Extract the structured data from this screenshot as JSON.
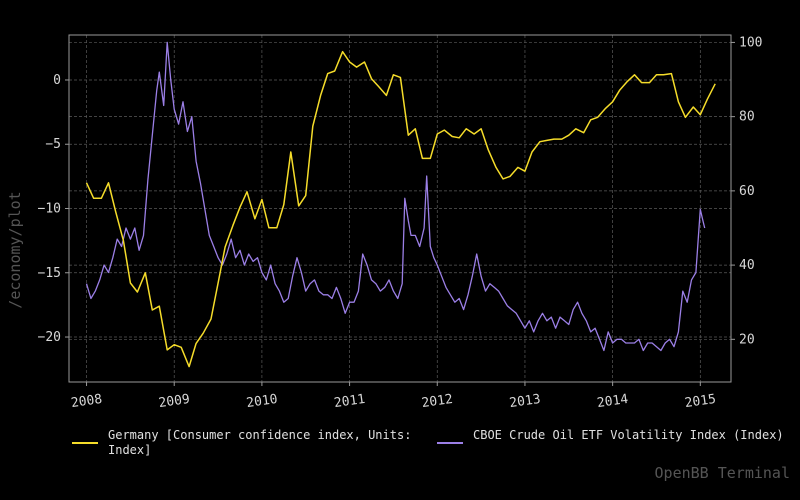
{
  "watermark": "OpenBB Terminal",
  "colors": {
    "background": "#000000",
    "grid": "#5a5a5a",
    "axis": "#9a9a9a",
    "text": "#d8d8d8",
    "series1": "#f5dc2a",
    "series2": "#9b7fe6"
  },
  "chart_data": {
    "type": "line",
    "ylabel_left": "/economy/plot",
    "xlim": [
      2007.8,
      2015.35
    ],
    "x_ticks": [
      "2008",
      "2009",
      "2010",
      "2011",
      "2012",
      "2013",
      "2014",
      "2015"
    ],
    "y_left": {
      "lim": [
        -23.5,
        3.5
      ],
      "ticks": [
        0,
        -5,
        -10,
        -15,
        -20
      ]
    },
    "y_right": {
      "lim": [
        8.5,
        102
      ],
      "ticks": [
        100,
        80,
        60,
        40,
        20
      ]
    },
    "grid": true,
    "legend_position": "bottom",
    "series": [
      {
        "name": "Germany [Consumer confidence index, Units: Index]",
        "legend_lines": [
          "Germany [Consumer confidence index, Units:",
          "Index]"
        ],
        "axis": "left",
        "color": "#f5dc2a",
        "points": [
          [
            2008.0,
            -8.0
          ],
          [
            2008.08,
            -9.2
          ],
          [
            2008.17,
            -9.2
          ],
          [
            2008.25,
            -8.0
          ],
          [
            2008.33,
            -10.2
          ],
          [
            2008.42,
            -12.5
          ],
          [
            2008.5,
            -15.8
          ],
          [
            2008.58,
            -16.5
          ],
          [
            2008.67,
            -15.0
          ],
          [
            2008.75,
            -17.9
          ],
          [
            2008.83,
            -17.6
          ],
          [
            2008.92,
            -21.0
          ],
          [
            2009.0,
            -20.6
          ],
          [
            2009.08,
            -20.8
          ],
          [
            2009.17,
            -22.3
          ],
          [
            2009.25,
            -20.5
          ],
          [
            2009.33,
            -19.7
          ],
          [
            2009.42,
            -18.6
          ],
          [
            2009.5,
            -15.8
          ],
          [
            2009.58,
            -13.0
          ],
          [
            2009.67,
            -11.3
          ],
          [
            2009.75,
            -9.9
          ],
          [
            2009.83,
            -8.7
          ],
          [
            2009.92,
            -10.8
          ],
          [
            2010.0,
            -9.3
          ],
          [
            2010.08,
            -11.5
          ],
          [
            2010.17,
            -11.5
          ],
          [
            2010.25,
            -9.7
          ],
          [
            2010.33,
            -5.6
          ],
          [
            2010.42,
            -9.8
          ],
          [
            2010.5,
            -9.0
          ],
          [
            2010.58,
            -3.6
          ],
          [
            2010.67,
            -1.2
          ],
          [
            2010.75,
            0.5
          ],
          [
            2010.83,
            0.7
          ],
          [
            2010.92,
            2.2
          ],
          [
            2011.0,
            1.4
          ],
          [
            2011.08,
            1.0
          ],
          [
            2011.17,
            1.4
          ],
          [
            2011.25,
            0.1
          ],
          [
            2011.33,
            -0.5
          ],
          [
            2011.42,
            -1.2
          ],
          [
            2011.5,
            0.4
          ],
          [
            2011.58,
            0.2
          ],
          [
            2011.67,
            -4.3
          ],
          [
            2011.75,
            -3.8
          ],
          [
            2011.83,
            -6.1
          ],
          [
            2011.92,
            -6.1
          ],
          [
            2012.0,
            -4.2
          ],
          [
            2012.08,
            -3.9
          ],
          [
            2012.17,
            -4.4
          ],
          [
            2012.25,
            -4.5
          ],
          [
            2012.33,
            -3.8
          ],
          [
            2012.42,
            -4.2
          ],
          [
            2012.5,
            -3.8
          ],
          [
            2012.58,
            -5.4
          ],
          [
            2012.67,
            -6.8
          ],
          [
            2012.75,
            -7.7
          ],
          [
            2012.83,
            -7.5
          ],
          [
            2012.92,
            -6.8
          ],
          [
            2013.0,
            -7.1
          ],
          [
            2013.08,
            -5.6
          ],
          [
            2013.17,
            -4.8
          ],
          [
            2013.25,
            -4.7
          ],
          [
            2013.33,
            -4.6
          ],
          [
            2013.42,
            -4.6
          ],
          [
            2013.5,
            -4.3
          ],
          [
            2013.58,
            -3.8
          ],
          [
            2013.67,
            -4.1
          ],
          [
            2013.75,
            -3.1
          ],
          [
            2013.83,
            -2.9
          ],
          [
            2013.92,
            -2.2
          ],
          [
            2014.0,
            -1.7
          ],
          [
            2014.08,
            -0.8
          ],
          [
            2014.17,
            -0.1
          ],
          [
            2014.25,
            0.4
          ],
          [
            2014.33,
            -0.2
          ],
          [
            2014.42,
            -0.2
          ],
          [
            2014.5,
            0.4
          ],
          [
            2014.58,
            0.4
          ],
          [
            2014.67,
            0.5
          ],
          [
            2014.75,
            -1.7
          ],
          [
            2014.83,
            -2.9
          ],
          [
            2014.92,
            -2.1
          ],
          [
            2015.0,
            -2.7
          ],
          [
            2015.08,
            -1.5
          ],
          [
            2015.17,
            -0.3
          ]
        ]
      },
      {
        "name": "CBOE Crude Oil ETF Volatility Index (Index)",
        "legend_lines": [
          "CBOE Crude Oil ETF Volatility Index (Index)"
        ],
        "axis": "right",
        "color": "#9b7fe6",
        "points": [
          [
            2008.0,
            35
          ],
          [
            2008.05,
            31
          ],
          [
            2008.1,
            33
          ],
          [
            2008.15,
            36
          ],
          [
            2008.2,
            40
          ],
          [
            2008.25,
            38
          ],
          [
            2008.3,
            42
          ],
          [
            2008.35,
            47
          ],
          [
            2008.4,
            45
          ],
          [
            2008.45,
            50
          ],
          [
            2008.5,
            47
          ],
          [
            2008.55,
            50
          ],
          [
            2008.6,
            44
          ],
          [
            2008.65,
            48
          ],
          [
            2008.7,
            63
          ],
          [
            2008.75,
            75
          ],
          [
            2008.8,
            87
          ],
          [
            2008.83,
            92
          ],
          [
            2008.88,
            83
          ],
          [
            2008.92,
            100
          ],
          [
            2008.96,
            90
          ],
          [
            2009.0,
            82
          ],
          [
            2009.05,
            78
          ],
          [
            2009.1,
            84
          ],
          [
            2009.15,
            76
          ],
          [
            2009.2,
            80
          ],
          [
            2009.25,
            68
          ],
          [
            2009.3,
            62
          ],
          [
            2009.35,
            55
          ],
          [
            2009.4,
            48
          ],
          [
            2009.45,
            45
          ],
          [
            2009.5,
            42
          ],
          [
            2009.55,
            40
          ],
          [
            2009.6,
            43
          ],
          [
            2009.65,
            47
          ],
          [
            2009.7,
            42
          ],
          [
            2009.75,
            44
          ],
          [
            2009.8,
            40
          ],
          [
            2009.85,
            43
          ],
          [
            2009.9,
            41
          ],
          [
            2009.95,
            42
          ],
          [
            2010.0,
            38
          ],
          [
            2010.05,
            36
          ],
          [
            2010.1,
            40
          ],
          [
            2010.15,
            35
          ],
          [
            2010.2,
            33
          ],
          [
            2010.25,
            30
          ],
          [
            2010.3,
            31
          ],
          [
            2010.35,
            37
          ],
          [
            2010.4,
            42
          ],
          [
            2010.45,
            38
          ],
          [
            2010.5,
            33
          ],
          [
            2010.55,
            35
          ],
          [
            2010.6,
            36
          ],
          [
            2010.65,
            33
          ],
          [
            2010.7,
            32
          ],
          [
            2010.75,
            32
          ],
          [
            2010.8,
            31
          ],
          [
            2010.85,
            34
          ],
          [
            2010.9,
            31
          ],
          [
            2010.95,
            27
          ],
          [
            2011.0,
            30
          ],
          [
            2011.05,
            30
          ],
          [
            2011.1,
            33
          ],
          [
            2011.15,
            43
          ],
          [
            2011.2,
            40
          ],
          [
            2011.25,
            36
          ],
          [
            2011.3,
            35
          ],
          [
            2011.35,
            33
          ],
          [
            2011.4,
            34
          ],
          [
            2011.45,
            36
          ],
          [
            2011.5,
            33
          ],
          [
            2011.55,
            31
          ],
          [
            2011.6,
            35
          ],
          [
            2011.63,
            58
          ],
          [
            2011.67,
            52
          ],
          [
            2011.7,
            48
          ],
          [
            2011.75,
            48
          ],
          [
            2011.8,
            45
          ],
          [
            2011.85,
            50
          ],
          [
            2011.88,
            64
          ],
          [
            2011.92,
            45
          ],
          [
            2011.96,
            42
          ],
          [
            2012.0,
            40
          ],
          [
            2012.05,
            37
          ],
          [
            2012.1,
            34
          ],
          [
            2012.15,
            32
          ],
          [
            2012.2,
            30
          ],
          [
            2012.25,
            31
          ],
          [
            2012.3,
            28
          ],
          [
            2012.35,
            32
          ],
          [
            2012.4,
            37
          ],
          [
            2012.45,
            43
          ],
          [
            2012.5,
            37
          ],
          [
            2012.55,
            33
          ],
          [
            2012.6,
            35
          ],
          [
            2012.65,
            34
          ],
          [
            2012.7,
            33
          ],
          [
            2012.75,
            31
          ],
          [
            2012.8,
            29
          ],
          [
            2012.85,
            28
          ],
          [
            2012.9,
            27
          ],
          [
            2012.95,
            25
          ],
          [
            2013.0,
            23
          ],
          [
            2013.05,
            25
          ],
          [
            2013.1,
            22
          ],
          [
            2013.15,
            25
          ],
          [
            2013.2,
            27
          ],
          [
            2013.25,
            25
          ],
          [
            2013.3,
            26
          ],
          [
            2013.35,
            23
          ],
          [
            2013.4,
            26
          ],
          [
            2013.45,
            25
          ],
          [
            2013.5,
            24
          ],
          [
            2013.55,
            28
          ],
          [
            2013.6,
            30
          ],
          [
            2013.65,
            27
          ],
          [
            2013.7,
            25
          ],
          [
            2013.75,
            22
          ],
          [
            2013.8,
            23
          ],
          [
            2013.85,
            20
          ],
          [
            2013.9,
            17
          ],
          [
            2013.95,
            22
          ],
          [
            2014.0,
            19
          ],
          [
            2014.05,
            20
          ],
          [
            2014.1,
            20
          ],
          [
            2014.15,
            19
          ],
          [
            2014.2,
            19
          ],
          [
            2014.25,
            19
          ],
          [
            2014.3,
            20
          ],
          [
            2014.35,
            17
          ],
          [
            2014.4,
            19
          ],
          [
            2014.45,
            19
          ],
          [
            2014.5,
            18
          ],
          [
            2014.55,
            17
          ],
          [
            2014.6,
            19
          ],
          [
            2014.65,
            20
          ],
          [
            2014.7,
            18
          ],
          [
            2014.75,
            22
          ],
          [
            2014.8,
            33
          ],
          [
            2014.85,
            30
          ],
          [
            2014.9,
            36
          ],
          [
            2014.95,
            38
          ],
          [
            2014.97,
            45
          ],
          [
            2015.0,
            55
          ],
          [
            2015.03,
            52
          ],
          [
            2015.05,
            50
          ]
        ]
      }
    ]
  }
}
